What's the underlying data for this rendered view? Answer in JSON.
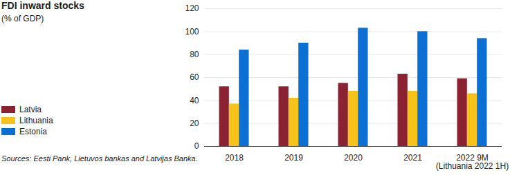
{
  "chart_data": {
    "type": "bar",
    "title": "FDI inward stocks",
    "subtitle": "(% of GDP)",
    "source": "Sources: Eesti Pank, Lietuvos bankas and Latvijas Banka.",
    "categories": [
      "2018",
      "2019",
      "2020",
      "2021",
      "2022 9M\n(Lithuania 2022 1H)"
    ],
    "series": [
      {
        "name": "Latvia",
        "color": "#8b2232",
        "values": [
          52,
          52,
          55,
          63,
          59
        ]
      },
      {
        "name": "Lithuania",
        "color": "#f7c31b",
        "values": [
          37,
          42,
          48,
          48,
          46
        ]
      },
      {
        "name": "Estonia",
        "color": "#0c6fd3",
        "values": [
          84,
          90,
          103,
          100,
          94
        ]
      }
    ],
    "ylim": [
      0,
      120
    ],
    "yticks": [
      0,
      20,
      40,
      60,
      80,
      100,
      120
    ],
    "grid": true,
    "legend": "left"
  }
}
